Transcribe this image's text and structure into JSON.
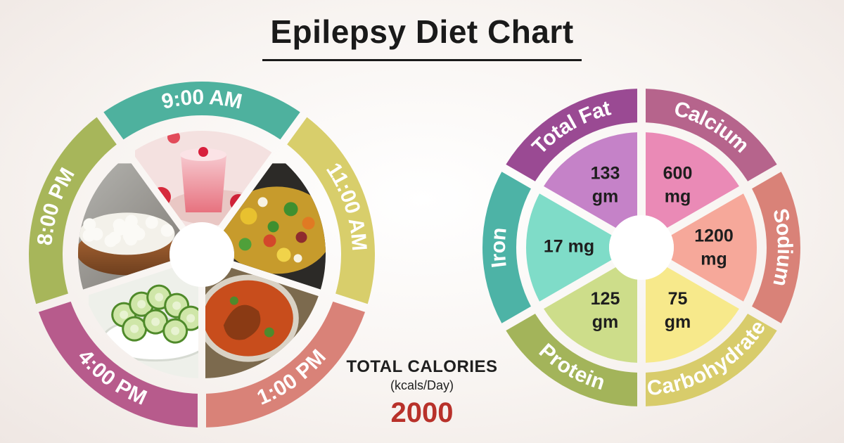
{
  "title": "Epilepsy Diet Chart",
  "meal_schedule": [
    {
      "time": "9:00 AM",
      "color": "#4eb19e",
      "food_icon": "strawberry-smoothie"
    },
    {
      "time": "11:00 AM",
      "color": "#d8ce6b",
      "food_icon": "vegetable-stir-fry"
    },
    {
      "time": "1:00 PM",
      "color": "#d98278",
      "food_icon": "chicken-curry"
    },
    {
      "time": "4:00 PM",
      "color": "#b75b8c",
      "food_icon": "cucumber-slices"
    },
    {
      "time": "8:00 PM",
      "color": "#a7b65a",
      "food_icon": "cottage-cheese"
    }
  ],
  "nutrients": [
    {
      "name": "Total Fat",
      "value": "133",
      "unit": "gm",
      "ring_color": "#9a4a93",
      "slice_color": "#c582c8"
    },
    {
      "name": "Calcium",
      "value": "600",
      "unit": "mg",
      "ring_color": "#b6648c",
      "slice_color": "#ea8ab6"
    },
    {
      "name": "Sodium",
      "value": "1200",
      "unit": "mg",
      "ring_color": "#d98278",
      "slice_color": "#f6a89a"
    },
    {
      "name": "Carbohydrate",
      "value": "75",
      "unit": "gm",
      "ring_color": "#d8cc6b",
      "slice_color": "#f7e98b"
    },
    {
      "name": "Protein",
      "value": "125",
      "unit": "gm",
      "ring_color": "#a3b45a",
      "slice_color": "#cddd8a"
    },
    {
      "name": "Iron",
      "value": "17 mg",
      "unit": "",
      "ring_color": "#4db3a6",
      "slice_color": "#7fdcc8"
    }
  ],
  "calories": {
    "label": "TOTAL CALORIES",
    "unit": "(kcals/Day)",
    "value": "2000",
    "value_color": "#b8312a"
  }
}
